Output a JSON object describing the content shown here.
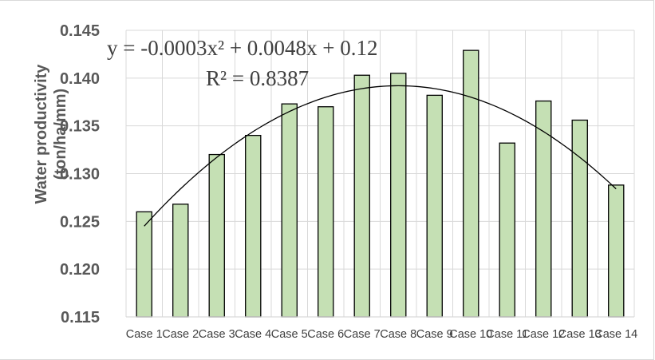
{
  "chart_data": {
    "type": "bar",
    "categories": [
      "Case 1",
      "Case 2",
      "Case 3",
      "Case 4",
      "Case 5",
      "Case 6",
      "Case 7",
      "Case 8",
      "Case 9",
      "Case 10",
      "Case 11",
      "Case 12",
      "Case 13",
      "Case 14"
    ],
    "values": [
      0.126,
      0.1268,
      0.132,
      0.134,
      0.1373,
      0.137,
      0.1403,
      0.1405,
      0.1382,
      0.1429,
      0.1332,
      0.1376,
      0.1356,
      0.1288
    ],
    "ylabel_line1": "Water productivity",
    "ylabel_line2": "(ton/ha/mm)",
    "ylim": [
      0.115,
      0.145
    ],
    "yticks": [
      "0.115",
      "0.120",
      "0.125",
      "0.130",
      "0.135",
      "0.140",
      "0.145"
    ],
    "grid": true,
    "bar_color": "#c5e0b4",
    "bar_edge_color": "#000000",
    "trendline": {
      "type": "polynomial",
      "coefficients": [
        -0.0003,
        0.0048,
        0.12
      ],
      "equation": "y = -0.0003x² + 0.0048x + 0.12",
      "r_squared": "R² = 0.8387"
    }
  }
}
